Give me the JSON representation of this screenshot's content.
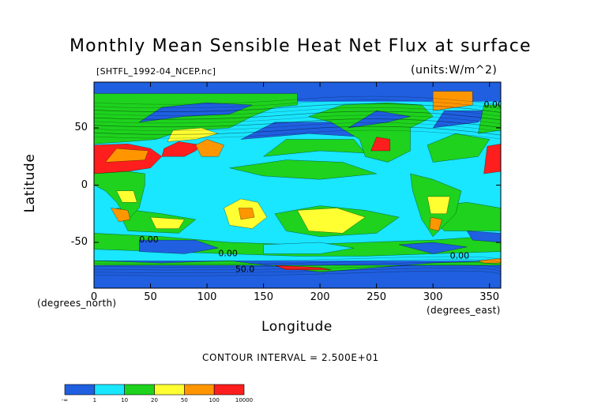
{
  "chart_data": {
    "type": "heatmap",
    "title": "Monthly Mean Sensible Heat Net Flux at surface",
    "source_label": "[SHTFL_1992-04_NCEP.nc]",
    "units_label": "(units:W/m^2)",
    "xlabel": "Longitude",
    "ylabel": "Latitude",
    "x_unit_label": "(degrees_east)",
    "y_unit_label": "(degrees_north)",
    "xlim": [
      0,
      360
    ],
    "ylim": [
      -90,
      90
    ],
    "x_ticks": [
      "0",
      "50",
      "100",
      "150",
      "200",
      "250",
      "300",
      "350"
    ],
    "x_tick_values": [
      0,
      50,
      100,
      150,
      200,
      250,
      300,
      350
    ],
    "y_ticks": [
      "50",
      "0",
      "-50"
    ],
    "y_tick_values": [
      50,
      0,
      -50
    ],
    "contour_interval_label": "CONTOUR INTERVAL = 2.500E+01",
    "contour_labels": [
      "0.00",
      "0.00",
      "0.00",
      "0.00",
      "50.0"
    ],
    "colorbar": {
      "levels": [
        "-∞",
        "1",
        "10",
        "20",
        "50",
        "100",
        "10000"
      ],
      "colors": [
        "#1f5fe0",
        "#19e6ff",
        "#1ed21e",
        "#ffff32",
        "#ff9600",
        "#ff1e1e"
      ]
    }
  },
  "colors": {
    "ocean_deep": "#1f5fe0",
    "cyan": "#19e6ff",
    "green": "#1ed21e",
    "yellow": "#ffff32",
    "orange": "#ff9600",
    "red": "#ff1e1e"
  }
}
